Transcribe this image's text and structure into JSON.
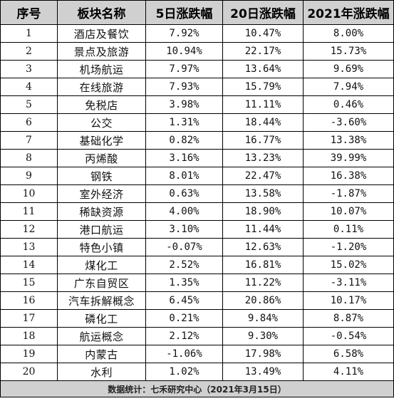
{
  "headers": [
    "序号",
    "板块名称",
    "5日涨跌幅",
    "20日涨跌幅",
    "2021年涨跌幅"
  ],
  "rows": [
    [
      "1",
      "酒店及餐饮",
      "7.92%",
      "10.47%",
      "8.00%"
    ],
    [
      "2",
      "景点及旅游",
      "10.94%",
      "22.17%",
      "15.73%"
    ],
    [
      "3",
      "机场航运",
      "7.97%",
      "13.64%",
      "9.69%"
    ],
    [
      "4",
      "在线旅游",
      "7.93%",
      "15.79%",
      "7.94%"
    ],
    [
      "5",
      "免税店",
      "3.98%",
      "11.11%",
      "0.46%"
    ],
    [
      "6",
      "公交",
      "1.31%",
      "18.44%",
      "-3.60%"
    ],
    [
      "7",
      "基础化学",
      "0.82%",
      "16.77%",
      "13.38%"
    ],
    [
      "8",
      "丙烯酸",
      "3.16%",
      "13.23%",
      "39.99%"
    ],
    [
      "9",
      "钢铁",
      "8.01%",
      "22.47%",
      "16.38%"
    ],
    [
      "10",
      "室外经济",
      "0.63%",
      "13.58%",
      "-1.87%"
    ],
    [
      "11",
      "稀缺资源",
      "4.00%",
      "18.90%",
      "10.07%"
    ],
    [
      "12",
      "港口航运",
      "3.10%",
      "11.44%",
      "0.11%"
    ],
    [
      "13",
      "特色小镇",
      "-0.07%",
      "12.63%",
      "-1.20%"
    ],
    [
      "14",
      "煤化工",
      "2.52%",
      "16.81%",
      "15.02%"
    ],
    [
      "15",
      "广东自贸区",
      "1.35%",
      "11.22%",
      "-3.11%"
    ],
    [
      "16",
      "汽车拆解概念",
      "6.45%",
      "20.86%",
      "10.17%"
    ],
    [
      "17",
      "磷化工",
      "0.21%",
      "9.84%",
      "8.87%"
    ],
    [
      "18",
      "航运概念",
      "2.12%",
      "9.30%",
      "-0.54%"
    ],
    [
      "19",
      "内蒙古",
      "-1.06%",
      "17.98%",
      "6.58%"
    ],
    [
      "20",
      "水利",
      "1.02%",
      "13.49%",
      "4.11%"
    ]
  ],
  "footer": "数据统计：七禾研究中心（2021年3月15日）"
}
